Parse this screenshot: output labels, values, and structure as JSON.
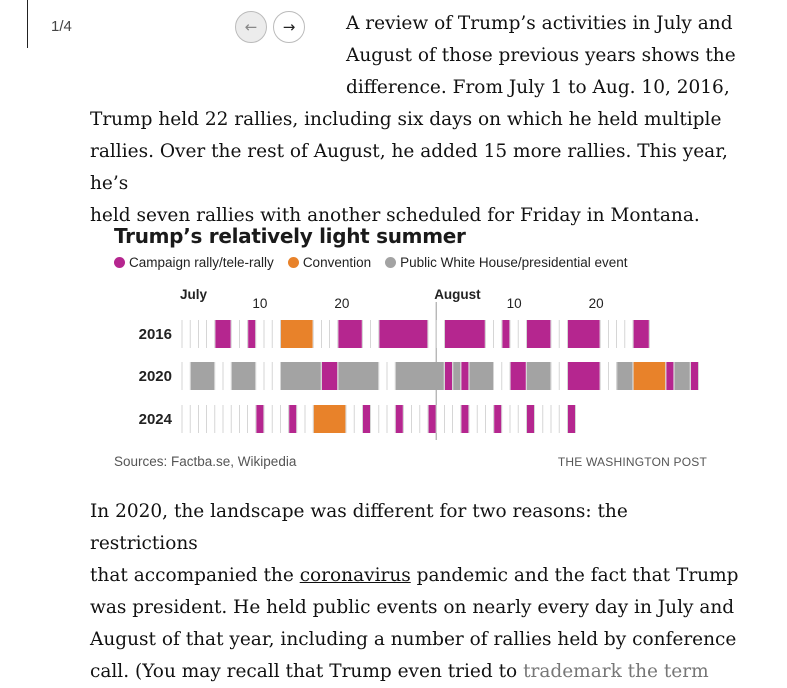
{
  "pager": {
    "label": "1/4",
    "prev_icon": "arrow-left-icon",
    "next_icon": "arrow-right-icon"
  },
  "article": {
    "p1_lines": [
      "A review of Trump’s activities in July and",
      "August of those previous years shows the",
      "difference. From July 1 to Aug. 10, 2016,",
      "Trump held 22 rallies, including six days on which he held multiple",
      "rallies. Over the rest of August, he added 15 more rallies. This year, he’s",
      "held seven rallies with another scheduled for Friday in Montana."
    ],
    "p2_line1": "In 2020, the landscape was different for two reasons: the restrictions",
    "p2_line2_pre": "that accompanied the ",
    "p2_line2_link": "coronavirus",
    "p2_line2_post": " pandemic and the fact that Trump",
    "p2_line3": "was president. He held public events on nearly every day in July and",
    "p2_line4": "August of that year, including a number of rallies held by conference",
    "p2_line5_pre": "call. (You may recall that Trump even tried to ",
    "p2_line5_link": "trademark the term"
  },
  "chart_data": {
    "type": "heatmap",
    "title": "Trump’s relatively light summer",
    "legend": [
      {
        "key": "R",
        "label": "Campaign rally/tele-rally",
        "color": "#b5268f"
      },
      {
        "key": "C",
        "label": "Convention",
        "color": "#e8822a"
      },
      {
        "key": "W",
        "label": "Public White House/presidential event",
        "color": "#a3a3a3"
      }
    ],
    "month_labels": [
      "July",
      "August"
    ],
    "day_ticks": [
      "10",
      "20",
      "10",
      "20"
    ],
    "x_range": [
      "July 1",
      "Aug. 31"
    ],
    "rows": [
      {
        "year": "2016",
        "days": "....RR..R...CCCC...RRR..RRRRRR..RRRRR..R..RRR..RRRR....RR"
      },
      {
        "year": "2020",
        "days": ".WWW..WWW...WWWWWRRWWWWW..WWWWWWRWRWWW..RRWWW..RRRR..WWCCCCRWWR"
      },
      {
        "year": "2024",
        "days": ".........R...R..CCCC..R...R...R...R...R...R....R"
      }
    ],
    "source": "Sources: Factba.se, Wikipedia",
    "credit": "THE WASHINGTON POST"
  }
}
